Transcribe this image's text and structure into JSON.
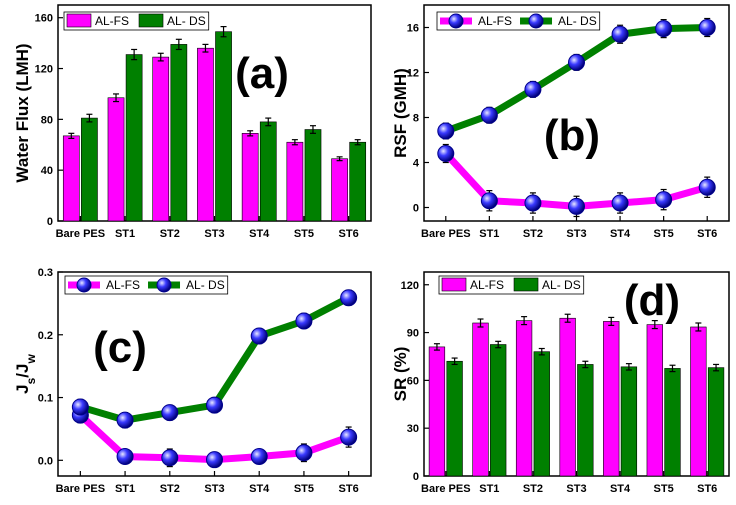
{
  "chart_data": [
    {
      "id": "a",
      "type": "bar",
      "panel_label": "(a)",
      "ylabel": "Water Flux (LMH)",
      "xlabel": "",
      "ylim": [
        0,
        170
      ],
      "yticks": [
        0,
        40,
        80,
        120,
        160
      ],
      "categories": [
        "Bare PES",
        "ST1",
        "ST2",
        "ST3",
        "ST4",
        "ST5",
        "ST6"
      ],
      "series": [
        {
          "name": "AL-FS",
          "color": "#ff00ff",
          "values": [
            67,
            97,
            129,
            136,
            69,
            62,
            49
          ],
          "errors": [
            2,
            3,
            3,
            3,
            2,
            2,
            1.5
          ]
        },
        {
          "name": "AL- DS",
          "color": "#008000",
          "values": [
            81,
            131,
            139,
            149,
            78,
            72,
            62
          ],
          "errors": [
            3,
            4,
            4,
            4,
            3,
            3,
            2
          ]
        }
      ],
      "legend": "top-left"
    },
    {
      "id": "b",
      "type": "line",
      "panel_label": "(b)",
      "ylabel": "RSF (GMH)",
      "xlabel": "",
      "ylim": [
        -1.2,
        18
      ],
      "yticks": [
        0,
        4,
        8,
        12,
        16
      ],
      "categories": [
        "Bare PES",
        "ST1",
        "ST2",
        "ST3",
        "ST4",
        "ST5",
        "ST6"
      ],
      "series": [
        {
          "name": "AL-FS",
          "color": "#ff00ff",
          "values": [
            4.8,
            0.6,
            0.4,
            0.1,
            0.4,
            0.7,
            1.8
          ],
          "errors": [
            0.8,
            0.9,
            0.9,
            0.9,
            0.9,
            0.9,
            0.9
          ]
        },
        {
          "name": "AL- DS",
          "color": "#008000",
          "values": [
            6.8,
            8.2,
            10.5,
            12.9,
            15.4,
            15.9,
            16.0
          ],
          "errors": [
            0.7,
            0.7,
            0.7,
            0.7,
            0.8,
            0.8,
            0.8
          ]
        }
      ],
      "legend": "top-left"
    },
    {
      "id": "c",
      "type": "line",
      "panel_label": "(c)",
      "ylabel": "Js/Jw",
      "xlabel": "",
      "ylim": [
        -0.025,
        0.3
      ],
      "yticks": [
        0.0,
        0.1,
        0.2,
        0.3
      ],
      "categories": [
        "Bare PES",
        "ST1",
        "ST2",
        "ST3",
        "ST4",
        "ST5",
        "ST6"
      ],
      "series": [
        {
          "name": "AL-FS",
          "color": "#ff00ff",
          "values": [
            0.072,
            0.006,
            0.004,
            0.001,
            0.006,
            0.012,
            0.037
          ],
          "errors": [
            0.012,
            0.009,
            0.014,
            0.009,
            0.009,
            0.014,
            0.016
          ]
        },
        {
          "name": "AL- DS",
          "color": "#008000",
          "values": [
            0.085,
            0.064,
            0.076,
            0.088,
            0.198,
            0.222,
            0.259
          ],
          "errors": [
            0.012,
            0.012,
            0.012,
            0.012,
            0.012,
            0.012,
            0.012
          ]
        }
      ],
      "legend": "top-left"
    },
    {
      "id": "d",
      "type": "bar",
      "panel_label": "(d)",
      "ylabel": "SR (%)",
      "xlabel": "",
      "ylim": [
        0,
        128
      ],
      "yticks": [
        0,
        30,
        60,
        90,
        120
      ],
      "categories": [
        "Bare PES",
        "ST1",
        "ST2",
        "ST3",
        "ST4",
        "ST5",
        "ST6"
      ],
      "series": [
        {
          "name": "AL-FS",
          "color": "#ff00ff",
          "values": [
            81,
            96,
            97.5,
            99,
            97,
            95,
            93.5
          ],
          "errors": [
            2,
            2.5,
            2.5,
            2.5,
            2.5,
            2.5,
            2.5
          ]
        },
        {
          "name": "AL- DS",
          "color": "#008000",
          "values": [
            72,
            82.5,
            78,
            70,
            68.5,
            67.5,
            68
          ],
          "errors": [
            2,
            2,
            2,
            2,
            2,
            2,
            2
          ]
        }
      ],
      "legend": "top-left"
    }
  ]
}
